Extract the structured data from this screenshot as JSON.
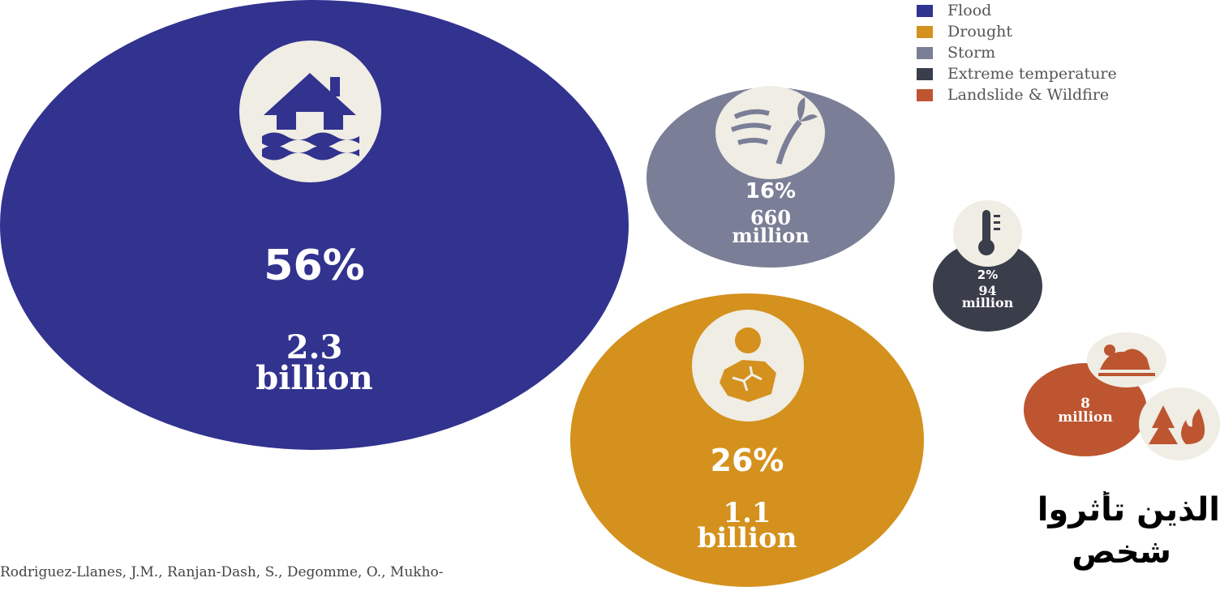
{
  "chart_data": {
    "type": "bubble",
    "series": [
      {
        "name": "Flood",
        "percent": "56%",
        "amount_line1": "2.3",
        "amount_line2": "billion",
        "value_millions": 2300,
        "share": 56,
        "icon": "house-flood-icon"
      },
      {
        "name": "Drought",
        "percent": "26%",
        "amount_line1": "1.1",
        "amount_line2": "billion",
        "value_millions": 1100,
        "share": 26,
        "icon": "cracked-earth-sun-icon"
      },
      {
        "name": "Storm",
        "percent": "16%",
        "amount_line1": "660",
        "amount_line2": "million",
        "value_millions": 660,
        "share": 16,
        "icon": "wind-palm-icon"
      },
      {
        "name": "Extreme temperature",
        "percent": "2%",
        "amount_line1": "94",
        "amount_line2": "million",
        "value_millions": 94,
        "share": 2,
        "icon": "thermometer-icon"
      },
      {
        "name": "Landslide & Wildfire",
        "percent": "",
        "amount_line1": "8",
        "amount_line2": "million",
        "value_millions": 8,
        "share": null,
        "icon": "landslide-fire-icon"
      }
    ]
  },
  "legend": [
    {
      "label": "Flood",
      "color": "#32328f"
    },
    {
      "label": "Drought",
      "color": "#d4911d"
    },
    {
      "label": "Storm",
      "color": "#7a7e96"
    },
    {
      "label": "Extreme temperature",
      "color": "#3a3d4a"
    },
    {
      "label": "Landslide & Wildfire",
      "color": "#bd5530"
    }
  ],
  "colors": {
    "flood": "#32328f",
    "drought": "#d4911d",
    "storm": "#7a7e96",
    "extreme_temperature": "#3a3d4a",
    "landslide_wildfire": "#bd5530",
    "icon_disc": "#efede4"
  },
  "citation": "Rodriguez-Llanes, J.M., Ranjan-Dash, S., Degomme, O., Mukho-",
  "arabic_overlay": {
    "line1": "الذين تأثروا",
    "line2": "شخص"
  }
}
